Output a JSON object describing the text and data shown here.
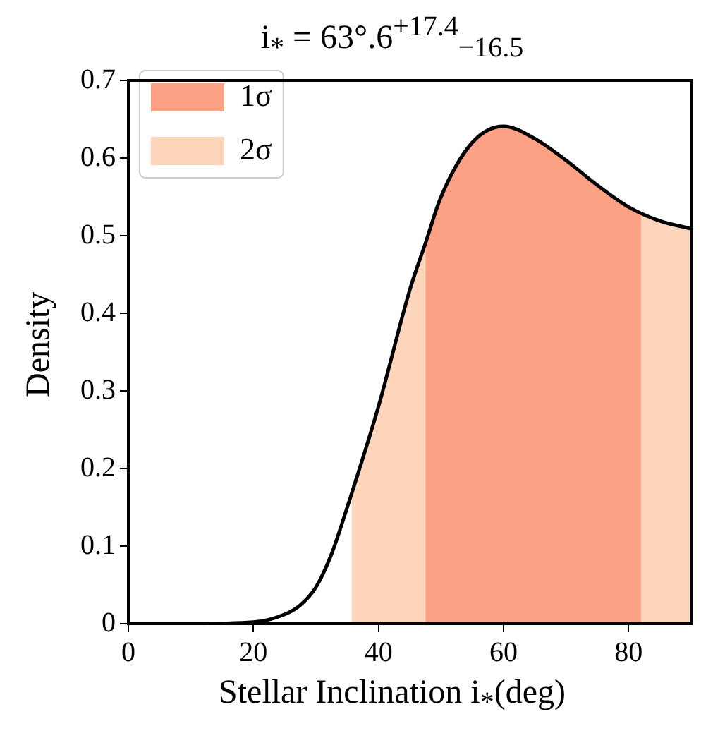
{
  "chart_data": {
    "type": "line",
    "title": "i$_{*}$ = 63°.6$^{+17.4}$$_{−16.5}$",
    "xlabel": "Stellar Inclination i$_{*}$(deg)",
    "ylabel": "Density",
    "x": [
      0,
      10,
      20,
      25,
      27.5,
      30,
      32.5,
      35,
      40,
      45,
      47.5,
      50,
      55,
      60,
      65,
      70,
      75,
      80,
      85,
      90
    ],
    "series": [
      {
        "name": "1σ",
        "type": "area",
        "color": "#fca183",
        "x": [
          47.5,
          50,
          55,
          60,
          65,
          70,
          75,
          80,
          82
        ],
        "values": [
          0.49,
          0.55,
          0.62,
          0.641,
          0.625,
          0.597,
          0.565,
          0.537,
          0.53
        ]
      },
      {
        "name": "2σ",
        "type": "area",
        "color": "#fdd5bb",
        "x": [
          35.7,
          40,
          45,
          47.5,
          65,
          82,
          85,
          90
        ],
        "values": [
          0.168,
          0.28,
          0.43,
          0.49,
          null,
          0.53,
          0.519,
          0.509
        ]
      },
      {
        "color": "#000000",
        "values": [
          0,
          0,
          0.002,
          0.012,
          0.024,
          0.047,
          0.09,
          0.15,
          0.28,
          0.43,
          0.49,
          0.55,
          0.62,
          0.641,
          0.625,
          0.597,
          0.565,
          0.537,
          0.519,
          0.509
        ]
      }
    ],
    "xlim": [
      0,
      90
    ],
    "xticks": [
      0,
      20,
      40,
      60,
      80
    ],
    "ylim": [
      0,
      0.7
    ],
    "yticks": [
      0,
      0.1,
      0.2,
      0.3,
      0.4,
      0.5,
      0.6,
      0.7
    ],
    "legend": "top left",
    "grid": false,
    "marker": "none",
    "line_style": "solid"
  }
}
